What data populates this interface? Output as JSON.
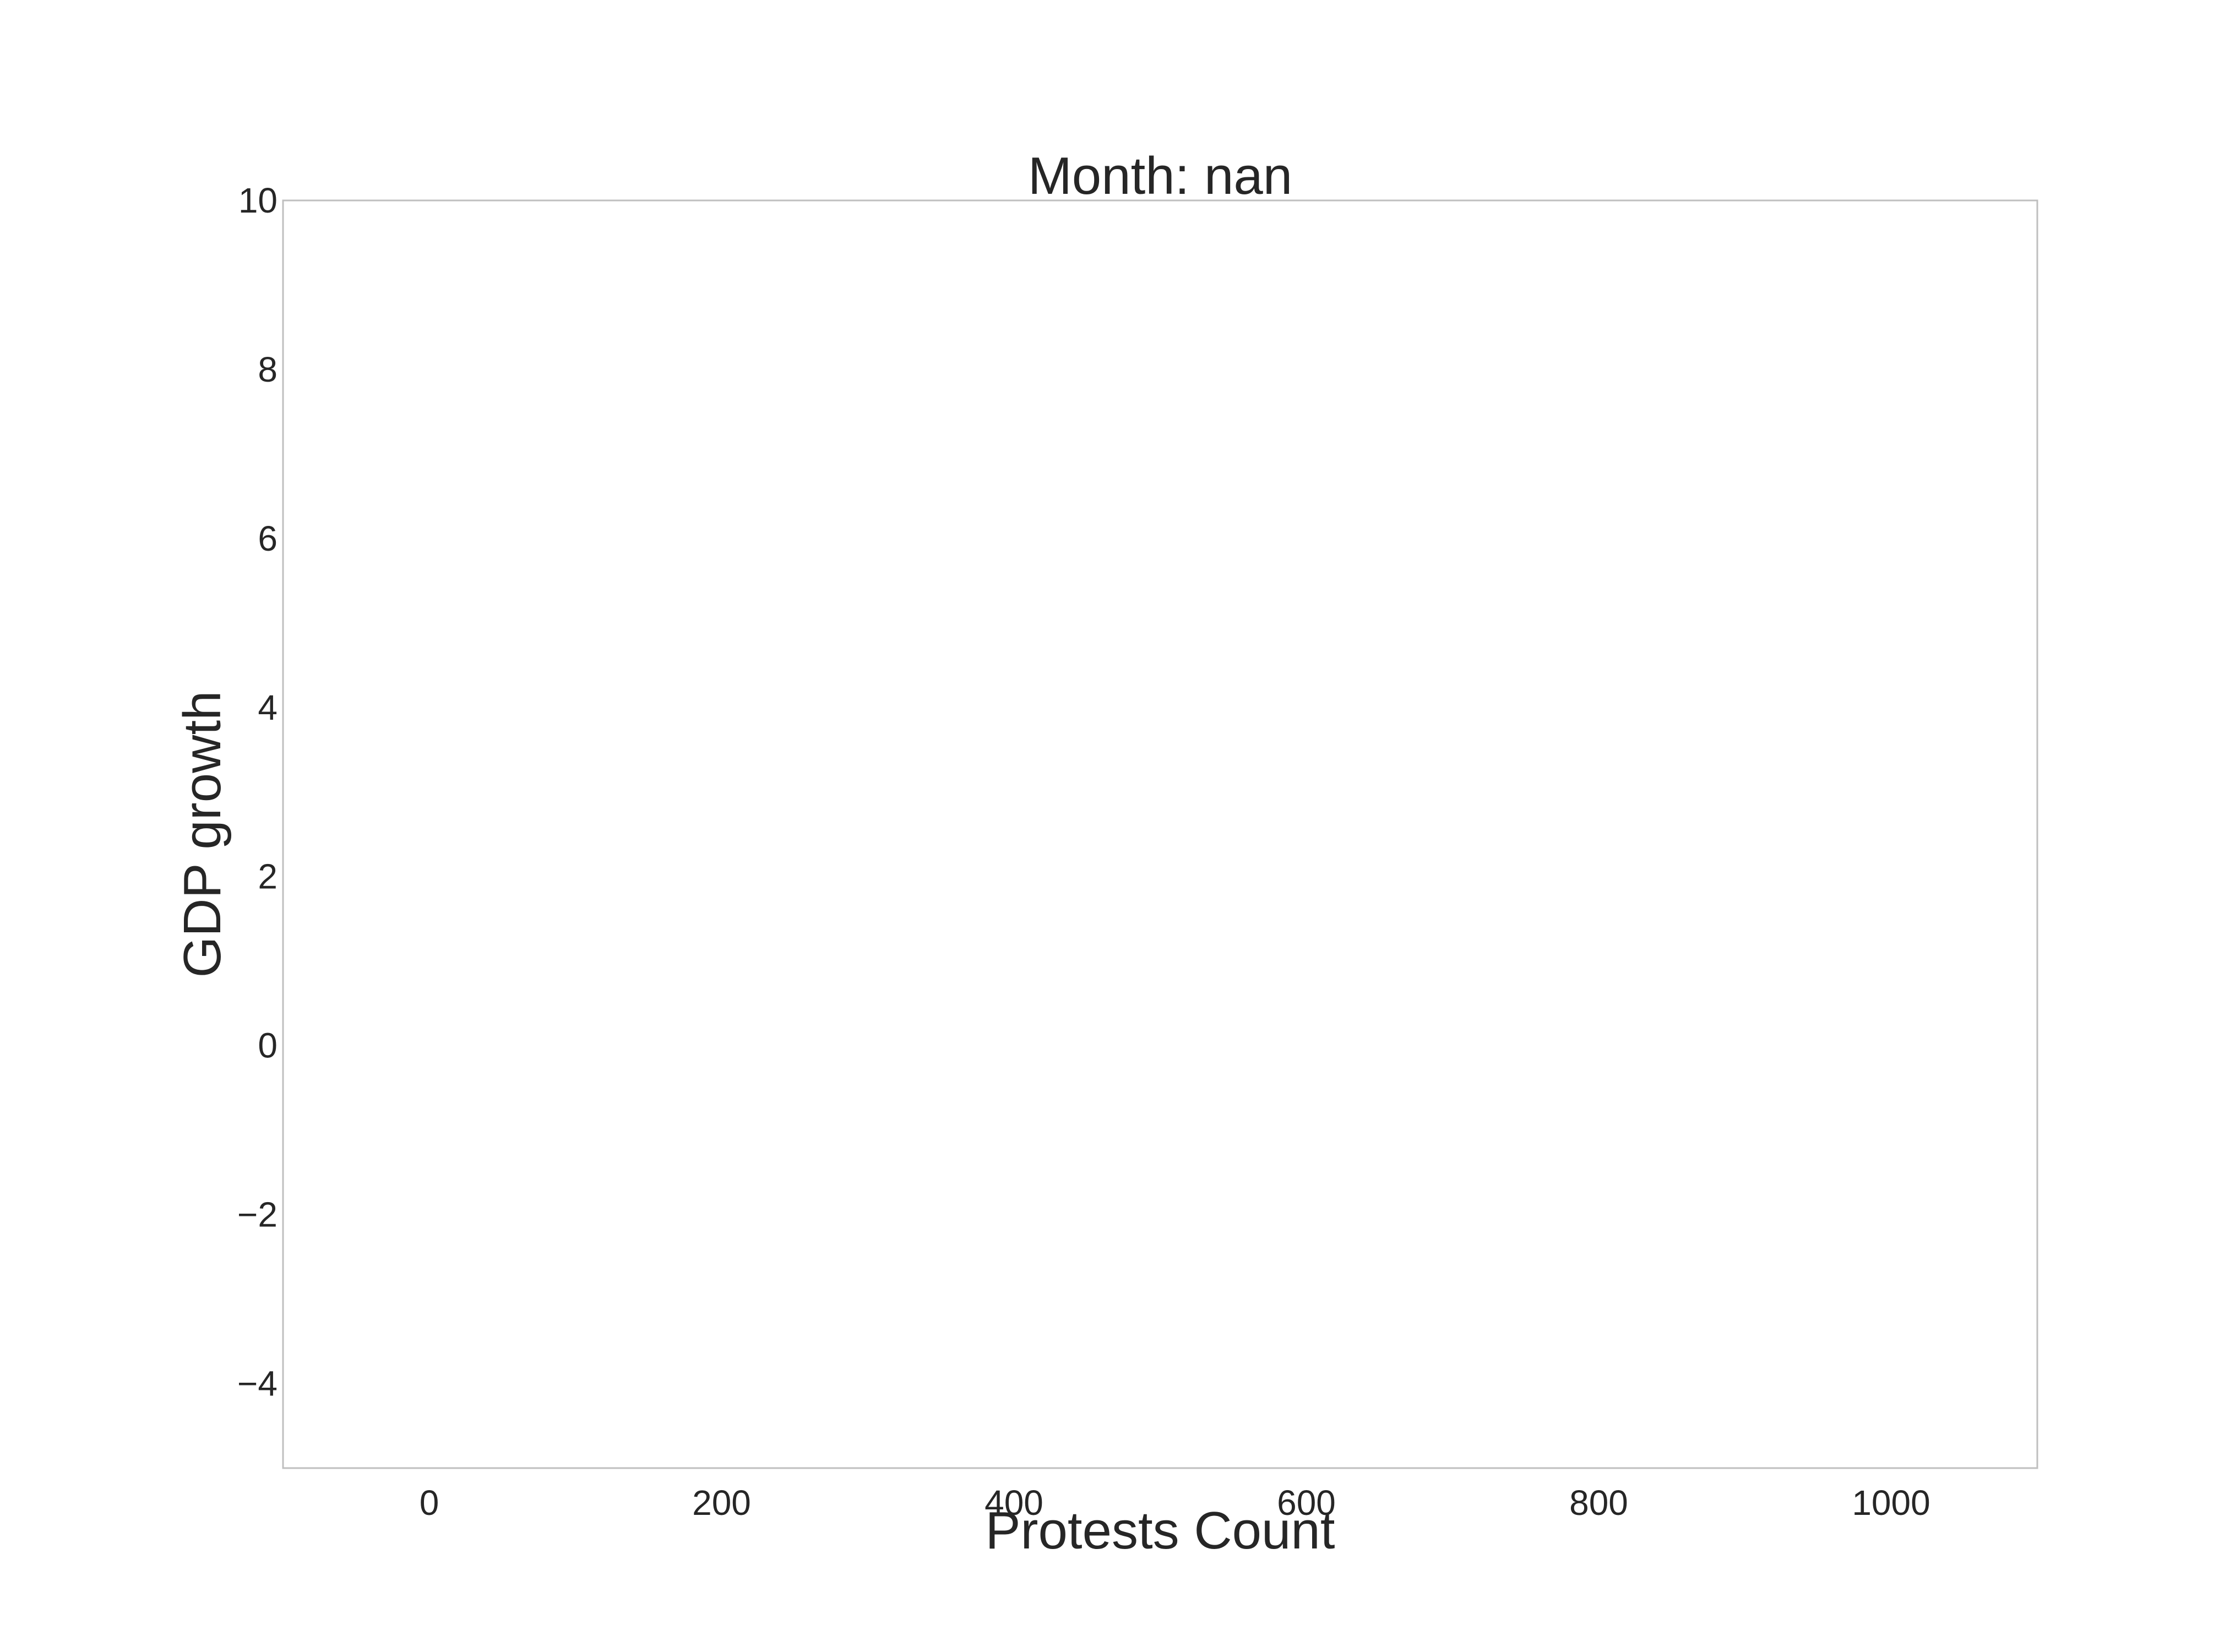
{
  "chart_data": {
    "type": "scatter",
    "title": "Month: nan",
    "xlabel": "Protests Count",
    "ylabel": "GDP growth",
    "xlim": [
      -100,
      1100
    ],
    "ylim": [
      -5,
      10
    ],
    "xticks": [
      0,
      200,
      400,
      600,
      800,
      1000
    ],
    "xtick_labels": [
      "0",
      "200",
      "400",
      "600",
      "800",
      "1000"
    ],
    "yticks": [
      -4,
      -2,
      0,
      2,
      4,
      6,
      8,
      10
    ],
    "ytick_labels": [
      "−4",
      "−2",
      "0",
      "2",
      "4",
      "6",
      "8",
      "10"
    ],
    "grid": false,
    "series": [
      {
        "x": [],
        "y": []
      }
    ],
    "colors": {
      "frame": "#bfbfbf",
      "text": "#262626",
      "background": "#ffffff"
    }
  }
}
